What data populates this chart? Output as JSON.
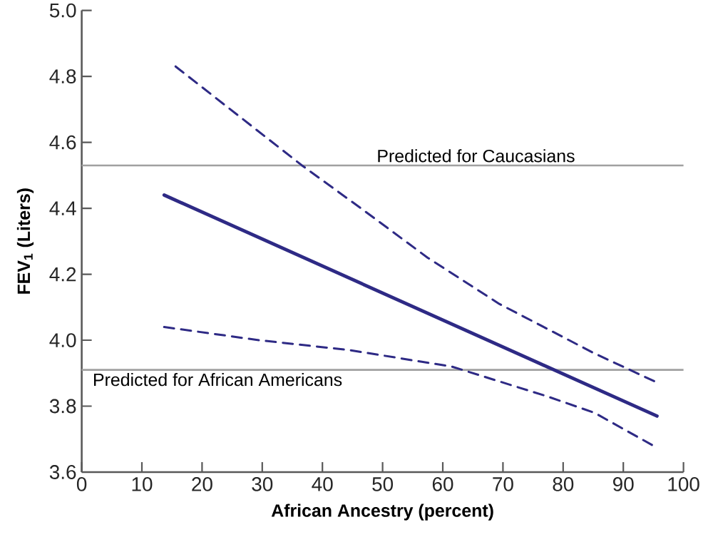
{
  "chart_data": {
    "type": "line",
    "xlabel": "African Ancestry (percent)",
    "ylabel": "FEV$_{1}$ (Liters)",
    "xlim": [
      0,
      100
    ],
    "ylim": [
      3.6,
      5.0
    ],
    "xticks": [
      0,
      10,
      20,
      30,
      40,
      50,
      60,
      70,
      80,
      90,
      100
    ],
    "yticks": [
      {
        "value": 3.6,
        "label": "3.6"
      },
      {
        "value": 3.8,
        "label": "3.8"
      },
      {
        "value": 4.0,
        "label": "4.0"
      },
      {
        "value": 4.2,
        "label": "4.2"
      },
      {
        "value": 4.4,
        "label": "4.4"
      },
      {
        "value": 4.6,
        "label": "4.6"
      },
      {
        "value": 4.8,
        "label": "4.8"
      },
      {
        "value": 5.0,
        "label": "5.0"
      }
    ],
    "grid": false,
    "series": [
      {
        "color": "#2e2a85",
        "line_style": "solid",
        "x": [
          13.7,
          95.6
        ],
        "values": [
          4.44,
          3.77
        ]
      },
      {
        "color": "#2e2a85",
        "line_style": "dashed",
        "x": [
          15.6,
          36.6,
          46.4,
          57.5,
          69.4,
          85.2,
          95.8
        ],
        "values": [
          4.83,
          4.53,
          4.4,
          4.25,
          4.11,
          3.96,
          3.87
        ]
      },
      {
        "color": "#2e2a85",
        "line_style": "dashed",
        "x": [
          13.7,
          29.5,
          44.5,
          61.5,
          77.3,
          85.2,
          95.0
        ],
        "values": [
          4.04,
          4.0,
          3.97,
          3.92,
          3.83,
          3.78,
          3.68
        ]
      }
    ],
    "ref_lines": [
      {
        "axis": "y",
        "value": 4.53,
        "label": "Predicted for Caucasians",
        "color": "#a0a0a0"
      },
      {
        "axis": "y",
        "value": 3.91,
        "label": "Predicted for African Americans",
        "color": "#a0a0a0"
      }
    ]
  }
}
